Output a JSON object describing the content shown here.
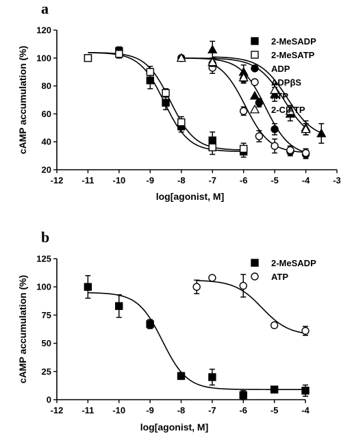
{
  "chart_data": [
    {
      "type": "scatter",
      "panel_label": "a",
      "xlabel": "log[agonist, M]",
      "ylabel": "cAMP accumulation (%)",
      "xlim": [
        -12,
        -3
      ],
      "ylim": [
        20,
        120
      ],
      "xticks": [
        -12,
        -11,
        -10,
        -9,
        -8,
        -7,
        -6,
        -5,
        -4,
        -3
      ],
      "yticks": [
        20,
        40,
        60,
        80,
        100,
        120
      ],
      "xtick_labels": [
        "-12",
        "-11",
        "-10",
        "-9",
        "-8",
        "-7",
        "-6",
        "-5",
        "-4",
        "-3"
      ],
      "ytick_labels": [
        "20",
        "40",
        "60",
        "80",
        "100",
        "120"
      ],
      "grid": false,
      "legend_position": "right",
      "series": [
        {
          "name": "2-MeSADP",
          "marker": "filled-square",
          "x": [
            -11,
            -10,
            -9,
            -8.5,
            -8,
            -7,
            -6
          ],
          "y": [
            100,
            105,
            84,
            68,
            51,
            41,
            33
          ],
          "err": [
            2,
            3,
            6,
            5,
            4,
            6,
            4
          ],
          "fit": {
            "top": 104,
            "bottom": 33,
            "logEC50": -8.55,
            "hill": 1.1
          }
        },
        {
          "name": "2-MeSATP",
          "marker": "open-square",
          "x": [
            -11,
            -10,
            -9,
            -8.5,
            -8,
            -7,
            -6
          ],
          "y": [
            100,
            103,
            90,
            75,
            54,
            36,
            35
          ],
          "err": [
            2,
            3,
            4,
            3,
            4,
            5,
            4
          ],
          "fit": {
            "top": 104,
            "bottom": 34,
            "logEC50": -8.35,
            "hill": 1.1
          }
        },
        {
          "name": "ADP",
          "marker": "filled-circle",
          "x": [
            -8,
            -7,
            -6,
            -5.5,
            -5,
            -4.5,
            -4
          ],
          "y": [
            100,
            96,
            85,
            68,
            49,
            33,
            31
          ],
          "err": [
            2,
            4,
            3,
            3,
            4,
            3,
            3
          ],
          "fit": {
            "top": 100,
            "bottom": 30,
            "logEC50": -5.3,
            "hill": 1.1
          }
        },
        {
          "name": "ADPβS",
          "marker": "open-circle",
          "x": [
            -7,
            -6,
            -5.5,
            -5,
            -4.5,
            -4
          ],
          "y": [
            93,
            62,
            44,
            37,
            34,
            32
          ],
          "err": [
            4,
            3,
            4,
            5,
            3,
            3
          ],
          "fit": {
            "top": 100,
            "bottom": 32,
            "logEC50": -5.95,
            "hill": 1.1
          }
        },
        {
          "name": "ATP",
          "marker": "filled-triangle",
          "x": [
            -7,
            -6,
            -5,
            -4.5,
            -4,
            -3.5
          ],
          "y": [
            106,
            90,
            74,
            60,
            50,
            46
          ],
          "err": [
            6,
            5,
            5,
            5,
            5,
            7
          ],
          "fit": {
            "top": 101,
            "bottom": 42,
            "logEC50": -4.6,
            "hill": 1.0
          }
        },
        {
          "name": "2-ClATP",
          "marker": "open-triangle",
          "x": [
            -8,
            -7,
            -6,
            -5,
            -4.5,
            -4
          ],
          "y": [
            100,
            97,
            86,
            77,
            62,
            49
          ],
          "err": [
            2,
            3,
            3,
            4,
            4,
            4
          ],
          "fit": {
            "top": 100,
            "bottom": 40,
            "logEC50": -4.7,
            "hill": 1.0
          }
        }
      ]
    },
    {
      "type": "scatter",
      "panel_label": "b",
      "xlabel": "log[agonist, M]",
      "ylabel": "cAMP accumulation (%)",
      "xlim": [
        -12,
        -4
      ],
      "ylim": [
        0,
        125
      ],
      "xticks": [
        -12,
        -11,
        -10,
        -9,
        -8,
        -7,
        -6,
        -5,
        -4
      ],
      "yticks": [
        0,
        25,
        50,
        75,
        100,
        125
      ],
      "xtick_labels": [
        "-12",
        "-11",
        "-10",
        "-9",
        "-8",
        "-7",
        "-6",
        "-5",
        "-4"
      ],
      "ytick_labels": [
        "0",
        "25",
        "50",
        "75",
        "100",
        "125"
      ],
      "grid": false,
      "legend_position": "right",
      "series": [
        {
          "name": "2-MeSADP",
          "marker": "filled-square",
          "x": [
            -11,
            -10,
            -9,
            -8,
            -7,
            -6,
            -5,
            -4
          ],
          "y": [
            100,
            83,
            67,
            21,
            20,
            4,
            9,
            8
          ],
          "err": [
            10,
            10,
            4,
            3,
            7,
            4,
            3,
            5
          ],
          "fit": {
            "top": 95,
            "bottom": 9,
            "logEC50": -8.6,
            "hill": 1.1
          }
        },
        {
          "name": "ATP",
          "marker": "open-circle",
          "x": [
            -7.5,
            -7,
            -6,
            -5,
            -4
          ],
          "y": [
            100,
            108,
            101,
            66,
            61
          ],
          "err": [
            6,
            2,
            10,
            2,
            4
          ],
          "fit": {
            "top": 106,
            "bottom": 57,
            "logEC50": -5.4,
            "hill": 1.0
          }
        }
      ]
    }
  ]
}
